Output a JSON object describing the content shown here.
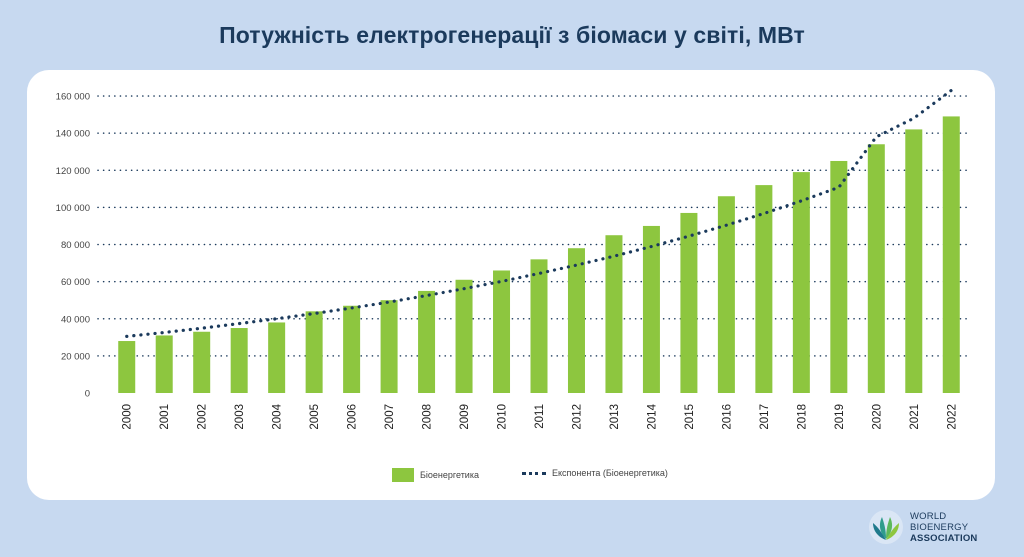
{
  "title": "Потужність електрогенерації з біомаси у світі, МВт",
  "logo": {
    "line1": "WORLD",
    "line2": "BIOENERGY",
    "line3": "ASSOCIATION"
  },
  "colors": {
    "bar": "#8dc63f",
    "trend": "#1b3a5c",
    "background": "#c7d9f0",
    "card": "#ffffff"
  },
  "chart_data": {
    "type": "bar",
    "categories": [
      "2000",
      "2001",
      "2002",
      "2003",
      "2004",
      "2005",
      "2006",
      "2007",
      "2008",
      "2009",
      "2010",
      "2011",
      "2012",
      "2013",
      "2014",
      "2015",
      "2016",
      "2017",
      "2018",
      "2019",
      "2020",
      "2021",
      "2022"
    ],
    "series": [
      {
        "name": "Біоенергетика",
        "type": "bar",
        "values": [
          28000,
          31000,
          33000,
          35000,
          38000,
          44000,
          47000,
          50000,
          55000,
          61000,
          66000,
          72000,
          78000,
          85000,
          90000,
          97000,
          106000,
          112000,
          119000,
          125000,
          134000,
          142000,
          149000
        ]
      },
      {
        "name": "Експонента (Біоенергетика)",
        "type": "trendline-exponential",
        "values": [
          30500,
          32600,
          34900,
          37400,
          40000,
          42800,
          45800,
          49000,
          52500,
          56200,
          60100,
          64400,
          68900,
          73700,
          78900,
          84500,
          90400,
          96700,
          103500,
          110800,
          138000,
          148000,
          163000
        ]
      }
    ],
    "ylim": [
      0,
      160000
    ],
    "yticks": [
      0,
      20000,
      40000,
      60000,
      80000,
      100000,
      120000,
      140000,
      160000
    ],
    "ytick_labels": [
      "0",
      "20 000",
      "40 000",
      "60 000",
      "80 000",
      "100 000",
      "120 000",
      "140 000",
      "160 000"
    ],
    "grid": "horizontal-dotted",
    "legend_position": "bottom",
    "xlabel": "",
    "ylabel": ""
  }
}
